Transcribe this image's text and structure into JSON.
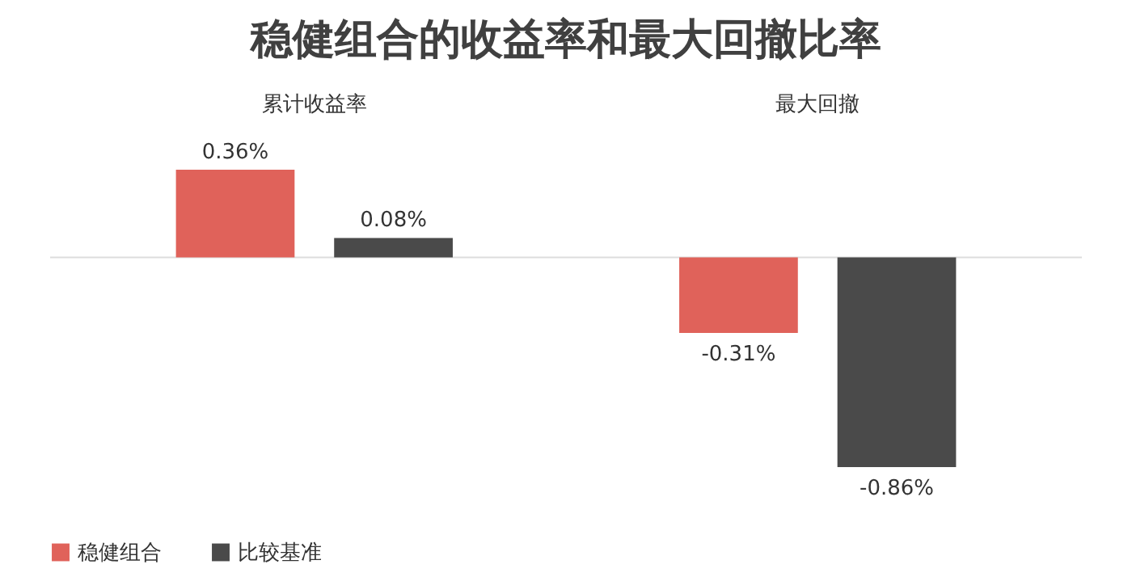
{
  "chart_data": {
    "type": "bar",
    "title": "稳健组合的收益率和最大回撤比率",
    "categories": [
      "累计收益率",
      "最大回撤"
    ],
    "series": [
      {
        "name": "稳健组合",
        "color": "#e0625a",
        "values": [
          0.36,
          -0.31
        ],
        "value_labels": [
          "0.36%",
          "-0.31%"
        ]
      },
      {
        "name": "比较基准",
        "color": "#4a4a4a",
        "values": [
          0.08,
          -0.86
        ],
        "value_labels": [
          "0.08%",
          "-0.86%"
        ]
      }
    ],
    "ref_lines": [
      {
        "axis": "y",
        "value": 0,
        "color": "#dddddd"
      }
    ],
    "legend": "bottom"
  }
}
